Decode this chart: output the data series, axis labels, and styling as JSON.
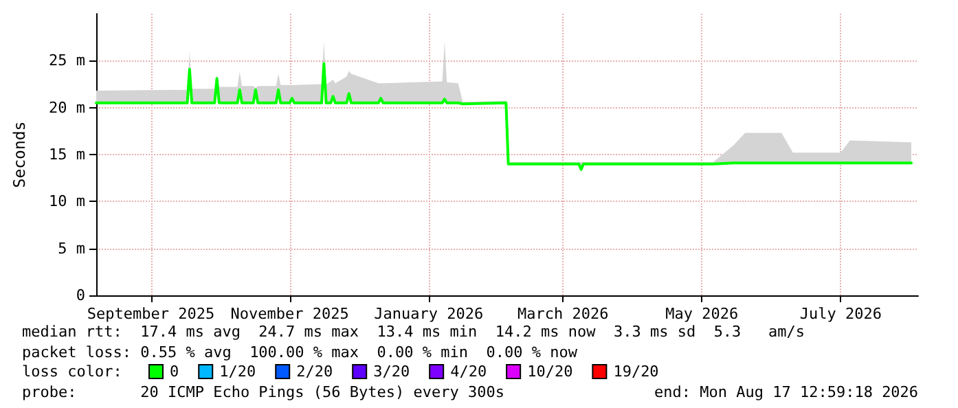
{
  "chart_data": {
    "type": "line",
    "ylabel": "Seconds",
    "xlim": [
      "2025-08-08",
      "2026-08-04"
    ],
    "xticks": [
      {
        "value": "2025-09-01",
        "label": "September 2025"
      },
      {
        "value": "2025-11-01",
        "label": "November 2025"
      },
      {
        "value": "2026-01-01",
        "label": "January 2026"
      },
      {
        "value": "2026-03-01",
        "label": "March 2026"
      },
      {
        "value": "2026-05-01",
        "label": "May 2026"
      },
      {
        "value": "2026-07-01",
        "label": "July 2026"
      }
    ],
    "ylim": [
      0,
      30
    ],
    "yticks": [
      0,
      {
        "value": 5,
        "label": "5 m"
      },
      {
        "value": 10,
        "label": "10 m"
      },
      {
        "value": 15,
        "label": "15 m"
      },
      {
        "value": 20,
        "label": "20 m"
      },
      {
        "value": 25,
        "label": "25 m"
      }
    ],
    "grid": true,
    "legend": "bottom",
    "legend_title": "loss color:",
    "series": [
      {
        "name": "0",
        "color": "#00ff00",
        "x": [
          "2025-08-08",
          "2025-09-17",
          "2025-09-18",
          "2025-09-19",
          "2025-09-29",
          "2025-09-30",
          "2025-10-01",
          "2025-10-09",
          "2025-10-10",
          "2025-10-11",
          "2025-10-16",
          "2025-10-17",
          "2025-10-18",
          "2025-10-26",
          "2025-10-27",
          "2025-10-28",
          "2025-11-01",
          "2025-11-02",
          "2025-11-03",
          "2025-11-15",
          "2025-11-16",
          "2025-11-17",
          "2025-11-19",
          "2025-11-20",
          "2025-11-21",
          "2025-11-26",
          "2025-11-27",
          "2025-11-28",
          "2025-12-10",
          "2025-12-11",
          "2025-12-12",
          "2026-01-07",
          "2026-01-08",
          "2026-01-09",
          "2026-01-14",
          "2026-01-16",
          "2026-02-04",
          "2026-02-05",
          "2026-03-08",
          "2026-03-09",
          "2026-03-10",
          "2026-05-06",
          "2026-05-15",
          "2026-05-20",
          "2026-06-05",
          "2026-06-10",
          "2026-07-01",
          "2026-07-05",
          "2026-08-01"
        ],
        "values": [
          20.5,
          20.5,
          24.1,
          20.5,
          20.5,
          23.1,
          20.5,
          20.5,
          21.9,
          20.5,
          20.5,
          21.9,
          20.5,
          20.5,
          21.9,
          20.5,
          20.5,
          21.0,
          20.5,
          20.5,
          24.7,
          20.5,
          20.5,
          21.2,
          20.5,
          20.5,
          21.5,
          20.5,
          20.5,
          21.0,
          20.5,
          20.5,
          20.9,
          20.5,
          20.5,
          20.4,
          20.5,
          14.0,
          14.0,
          13.4,
          14.0,
          14.0,
          14.1,
          14.1,
          14.1,
          14.1,
          14.1,
          14.1,
          14.1
        ],
        "lower": [
          20.5,
          20.5,
          24.1,
          20.5,
          20.5,
          23.1,
          20.5,
          20.5,
          21.9,
          20.5,
          20.5,
          21.9,
          20.5,
          20.5,
          21.9,
          20.5,
          20.5,
          21.0,
          20.5,
          20.5,
          24.7,
          20.5,
          20.5,
          21.2,
          20.5,
          20.5,
          21.5,
          20.5,
          20.5,
          21.0,
          20.5,
          20.5,
          20.9,
          20.5,
          20.5,
          20.4,
          20.5,
          14.0,
          14.0,
          13.4,
          14.0,
          14.0,
          14.1,
          14.1,
          14.1,
          14.1,
          14.1,
          14.1,
          14.1
        ],
        "upper": [
          21.8,
          21.9,
          26.0,
          22.0,
          22.0,
          23.5,
          22.2,
          22.2,
          23.8,
          22.3,
          22.3,
          22.1,
          22.3,
          22.3,
          23.6,
          22.4,
          22.4,
          22.4,
          22.4,
          22.5,
          27.0,
          22.5,
          22.8,
          23.0,
          22.6,
          23.3,
          23.9,
          23.6,
          22.6,
          22.6,
          22.6,
          22.8,
          27.0,
          22.7,
          22.6,
          20.6,
          20.7,
          14.2,
          14.2,
          14.2,
          14.2,
          14.2,
          16.0,
          17.3,
          17.3,
          15.2,
          15.2,
          16.5,
          16.3
        ]
      },
      {
        "name": "1/20",
        "color": "#00b8ff"
      },
      {
        "name": "2/20",
        "color": "#0059ff"
      },
      {
        "name": "3/20",
        "color": "#5e00ff"
      },
      {
        "name": "4/20",
        "color": "#7e00ff"
      },
      {
        "name": "10/20",
        "color": "#dd00ff"
      },
      {
        "name": "19/20",
        "color": "#ff0000"
      }
    ],
    "annotations": [
      "median rtt:  17.4 ms avg  24.7 ms max  13.4 ms min  14.2 ms now  3.3 ms sd  5.3   am/s",
      "packet loss: 0.55 % avg  100.00 % max  0.00 % min  0.00 % now",
      "probe:       20 ICMP Echo Pings (56 Bytes) every 300s",
      "end: Mon Aug 17 12:59:18 2026"
    ]
  }
}
